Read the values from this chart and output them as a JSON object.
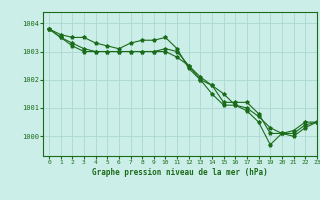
{
  "title": "Graphe pression niveau de la mer (hPa)",
  "bg_color": "#cceee8",
  "grid_color": "#aad8d0",
  "line_color": "#1a6b1a",
  "xlim": [
    -0.5,
    23
  ],
  "ylim": [
    999.3,
    1004.4
  ],
  "yticks": [
    1000,
    1001,
    1002,
    1003,
    1004
  ],
  "xticks": [
    0,
    1,
    2,
    3,
    4,
    5,
    6,
    7,
    8,
    9,
    10,
    11,
    12,
    13,
    14,
    15,
    16,
    17,
    18,
    19,
    20,
    21,
    22,
    23
  ],
  "series": [
    [
      1003.8,
      1003.6,
      1003.5,
      1003.5,
      1003.3,
      1003.2,
      1003.1,
      1003.3,
      1003.4,
      1003.4,
      1003.5,
      1003.1,
      1002.4,
      1002.0,
      1001.8,
      1001.2,
      1001.2,
      1001.2,
      1000.8,
      1000.1,
      1000.1,
      1000.2,
      1000.5,
      1000.5
    ],
    [
      1003.8,
      1003.5,
      1003.3,
      1003.1,
      1003.0,
      1003.0,
      1003.0,
      1003.0,
      1003.0,
      1003.0,
      1003.0,
      1002.8,
      1002.5,
      1002.0,
      1001.5,
      1001.1,
      1001.1,
      1000.9,
      1000.5,
      999.7,
      1000.1,
      1000.1,
      1000.4,
      1000.5
    ],
    [
      1003.8,
      1003.5,
      1003.2,
      1003.0,
      1003.0,
      1003.0,
      1003.0,
      1003.0,
      1003.0,
      1003.0,
      1003.1,
      1003.0,
      1002.5,
      1002.1,
      1001.8,
      1001.5,
      1001.1,
      1001.0,
      1000.7,
      1000.3,
      1000.1,
      1000.0,
      1000.3,
      1000.5
    ]
  ],
  "figsize": [
    3.2,
    2.0
  ],
  "dpi": 100
}
